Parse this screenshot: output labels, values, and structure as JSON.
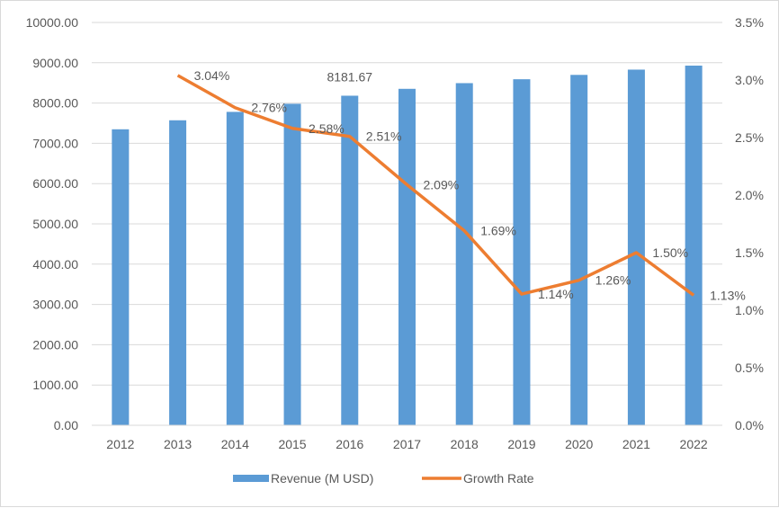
{
  "chart_data": {
    "type": "bar+line",
    "title": "",
    "categories": [
      "2012",
      "2013",
      "2014",
      "2015",
      "2016",
      "2017",
      "2018",
      "2019",
      "2020",
      "2021",
      "2022"
    ],
    "series": [
      {
        "name": "Revenue (M USD)",
        "type": "bar",
        "axis": "left",
        "values": [
          7348.2,
          7571.6,
          7780.6,
          7981.3,
          8181.67,
          8352.7,
          8493.9,
          8590.7,
          8698.9,
          8829.4,
          8929.2
        ],
        "data_labels": {
          "4": "8181.67"
        }
      },
      {
        "name": "Growth Rate",
        "type": "line",
        "axis": "right",
        "values": [
          null,
          3.04,
          2.76,
          2.58,
          2.51,
          2.09,
          1.69,
          1.14,
          1.26,
          1.5,
          1.13
        ],
        "data_labels": [
          "",
          "3.04%",
          "2.76%",
          "2.58%",
          "2.51%",
          "2.09%",
          "1.69%",
          "1.14%",
          "1.26%",
          "1.50%",
          "1.13%"
        ]
      }
    ],
    "ylim": [
      0,
      10000
    ],
    "y_ticks": [
      "0.00",
      "1000.00",
      "2000.00",
      "3000.00",
      "4000.00",
      "5000.00",
      "6000.00",
      "7000.00",
      "8000.00",
      "9000.00",
      "10000.00"
    ],
    "y2lim": [
      0,
      3.5
    ],
    "y2_ticks": [
      "0.0%",
      "0.5%",
      "1.0%",
      "1.5%",
      "2.0%",
      "2.5%",
      "3.0%",
      "3.5%"
    ],
    "grid": true,
    "legend": {
      "position": "bottom",
      "entries": [
        "Revenue (M USD)",
        "Growth Rate"
      ]
    },
    "colors": {
      "bar": "#5b9bd5",
      "line": "#ed7d31",
      "grid": "#d9d9d9",
      "text": "#595959"
    }
  }
}
